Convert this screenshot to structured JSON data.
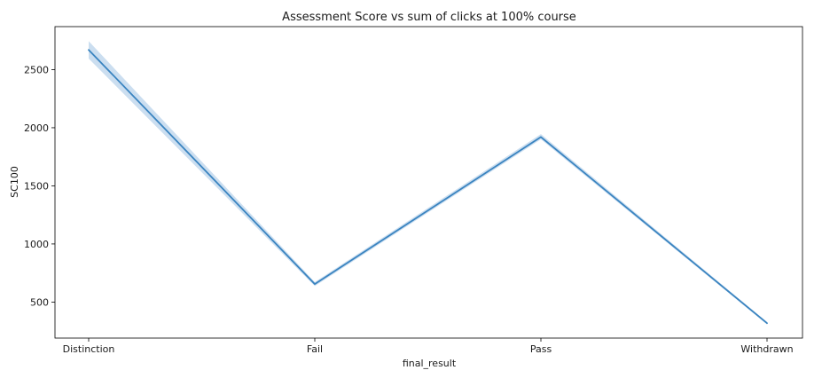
{
  "chart_data": {
    "type": "line",
    "title": "Assessment Score vs sum of clicks at 100% course",
    "xlabel": "final_result",
    "ylabel": "SC100",
    "categories": [
      "Distinction",
      "Fail",
      "Pass",
      "Withdrawn"
    ],
    "yticks": [
      500,
      1000,
      1500,
      2000,
      2500
    ],
    "ylim": [
      190,
      2870
    ],
    "grid": false,
    "legend": "none",
    "series": [
      {
        "values": [
          2670,
          655,
          1920,
          318
        ],
        "ci_lower": [
          2595,
          638,
          1900,
          308
        ],
        "ci_upper": [
          2745,
          672,
          1945,
          328
        ]
      }
    ],
    "colors": {
      "line": "#3a84c0",
      "band": "#a9c8e6"
    }
  }
}
